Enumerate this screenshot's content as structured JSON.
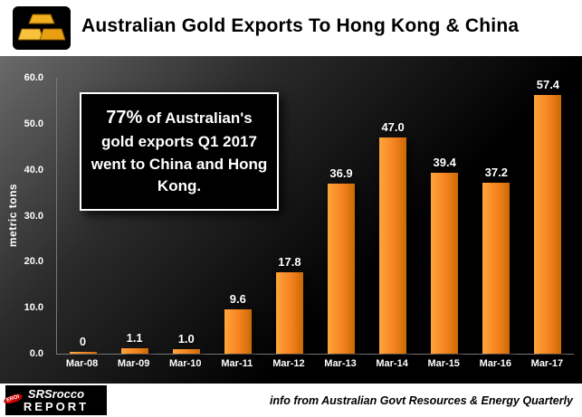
{
  "header": {
    "icon": "gold-bars-icon"
  },
  "annotation": {
    "lead": "77%",
    "rest": " of Australian's gold exports Q1 2017 went to China and Hong Kong."
  },
  "footer": {
    "logo_line1": "SRSrocco",
    "logo_line2": "REPORT",
    "logo_badge": "EROI",
    "source_note": "info from Australian Govt Resources & Energy Quarterly"
  },
  "chart_data": {
    "type": "bar",
    "title": "Australian Gold Exports To Hong Kong & China",
    "categories": [
      "Mar-08",
      "Mar-09",
      "Mar-10",
      "Mar-11",
      "Mar-12",
      "Mar-13",
      "Mar-14",
      "Mar-15",
      "Mar-16",
      "Mar-17"
    ],
    "values": [
      0,
      1.1,
      1.0,
      9.6,
      17.8,
      36.9,
      47.0,
      39.4,
      37.2,
      57.4
    ],
    "labels": [
      "0",
      "1.1",
      "1.0",
      "9.6",
      "17.8",
      "36.9",
      "47.0",
      "39.4",
      "37.2",
      "57.4"
    ],
    "xlabel": "",
    "ylabel": "metric tons",
    "ylim": [
      0,
      60
    ],
    "yticks": [
      0,
      10,
      20,
      30,
      40,
      50,
      60
    ],
    "ytick_labels": [
      "0.0",
      "10.0",
      "20.0",
      "30.0",
      "40.0",
      "50.0",
      "60.0"
    ],
    "bar_color": "#F5831F",
    "background_color": "#000000",
    "grid": false,
    "legend": "none"
  }
}
